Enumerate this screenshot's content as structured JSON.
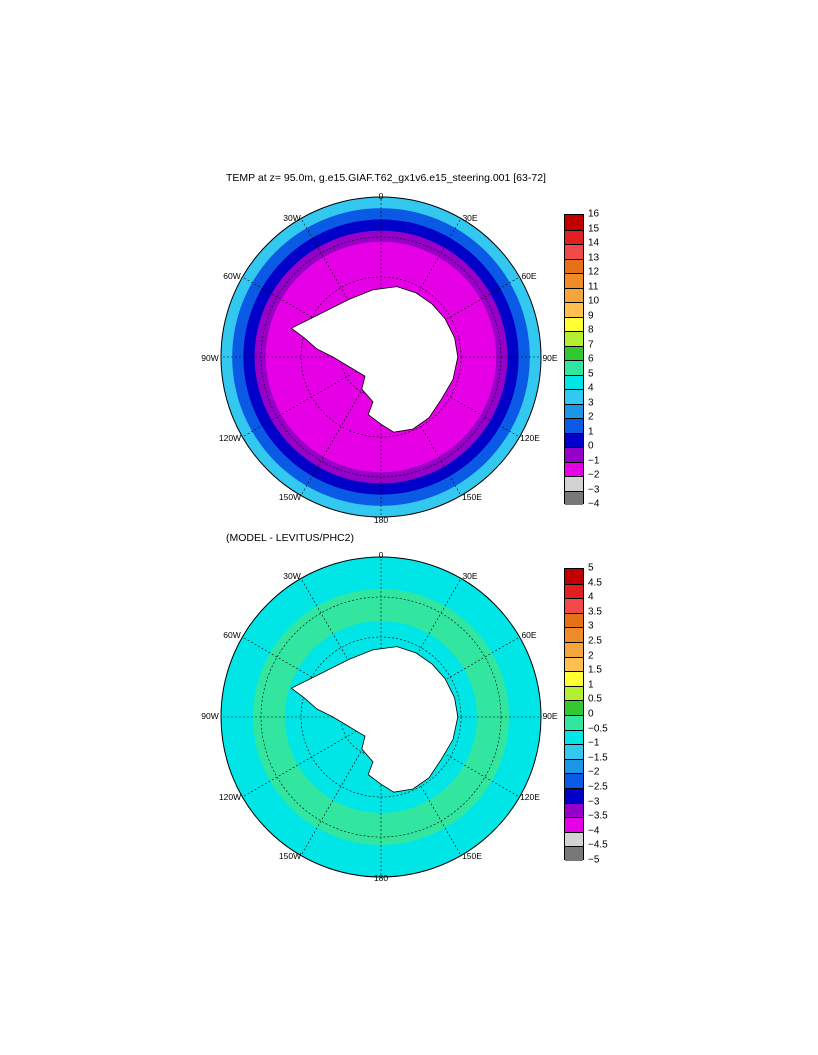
{
  "panels": [
    {
      "title": "TEMP at z=  95.0m, g.e15.GIAF.T62_gx1v6.e15_steering.001 [63-72]",
      "lon_labels": {
        "n": "0",
        "s": "180",
        "e": "90E",
        "w": "90W",
        "ne30": "30E",
        "nw30": "30W",
        "ne60": "60E",
        "nw60": "60W",
        "se120": "120E",
        "sw120": "120W",
        "se150": "150E",
        "sw150": "150W"
      },
      "colorbar": {
        "ticks": [
          "16",
          "15",
          "14",
          "13",
          "12",
          "11",
          "10",
          "9",
          "8",
          "7",
          "6",
          "5",
          "4",
          "3",
          "2",
          "1",
          "0",
          "−1",
          "−2",
          "−3",
          "−4"
        ],
        "colors": [
          "#c00000",
          "#e02020",
          "#f24a4a",
          "#e6701a",
          "#f08c28",
          "#f5a53c",
          "#ffc050",
          "#ffff32",
          "#b4ee32",
          "#32c832",
          "#32e6a0",
          "#00e6e6",
          "#32c8f0",
          "#1e96e6",
          "#0a5ae6",
          "#0000c8",
          "#9600c8",
          "#e600e6",
          "#d2d2d2",
          "#787878"
        ]
      },
      "rings": [
        {
          "r": 1.0,
          "c": "#32c8f0"
        },
        {
          "r": 0.93,
          "c": "#0a5ae6"
        },
        {
          "r": 0.86,
          "c": "#0000c8"
        },
        {
          "r": 0.79,
          "c": "#9600c8"
        },
        {
          "r": 0.72,
          "c": "#e600e6"
        }
      ]
    },
    {
      "title": "(MODEL - LEVITUS/PHC2)",
      "lon_labels": {
        "n": "0",
        "s": "180",
        "e": "90E",
        "w": "90W",
        "ne30": "30E",
        "nw30": "30W",
        "ne60": "60E",
        "nw60": "60W",
        "se120": "120E",
        "sw120": "120W",
        "se150": "150E",
        "sw150": "150W"
      },
      "colorbar": {
        "ticks": [
          "5",
          "4.5",
          "4",
          "3.5",
          "3",
          "2.5",
          "2",
          "1.5",
          "1",
          "0.5",
          "0",
          "−0.5",
          "−1",
          "−1.5",
          "−2",
          "−2.5",
          "−3",
          "−3.5",
          "−4",
          "−4.5",
          "−5"
        ],
        "colors": [
          "#c00000",
          "#e02020",
          "#f24a4a",
          "#e6701a",
          "#f08c28",
          "#f5a53c",
          "#ffc050",
          "#ffff32",
          "#b4ee32",
          "#32c832",
          "#32e6a0",
          "#00e6e6",
          "#32c8f0",
          "#1e96e6",
          "#0a5ae6",
          "#0000c8",
          "#9600c8",
          "#e600e6",
          "#d2d2d2",
          "#787878"
        ]
      },
      "rings": [
        {
          "r": 1.0,
          "c": "#00e6e6"
        },
        {
          "r": 0.8,
          "c": "#32e6a0"
        },
        {
          "r": 0.6,
          "c": "#00e6e6"
        }
      ]
    }
  ]
}
